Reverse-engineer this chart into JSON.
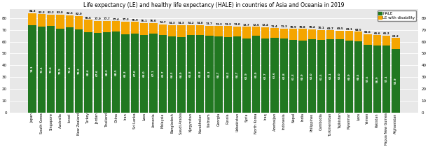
{
  "title": "Life expectancy (LE) and healthy life expectancy (HALE) in countries of Asia and Oceania in 2019",
  "country_labels": [
    "Japan",
    "South Korea",
    "Singapore",
    "Australia",
    "Israel",
    "New Zealand",
    "Turkey",
    "Jordan",
    "Thailand",
    "China",
    "Iran",
    "Sri Lanka",
    "Laos",
    "Armenia",
    "Malaysia",
    "Bangladesh",
    "Saudi Arabia",
    "Kyrgyzstan",
    "Kazakhstan",
    "Vietnam",
    "Georgia",
    "Russia",
    "Uzbekistan",
    "Syria",
    "North Korea",
    "Iraq",
    "Azerbaijan",
    "Indonesia",
    "Nepal",
    "India",
    "Philippines",
    "Cambodia",
    "Turkmenistan",
    "Tajikistan",
    "Myanmar",
    "Laos",
    "Yemen",
    "Pakistan",
    "Papua New Guinea",
    "Afghanistan"
  ],
  "le": [
    84.3,
    83.3,
    83.2,
    83.0,
    82.6,
    82.0,
    78.6,
    77.9,
    77.7,
    77.4,
    77.3,
    76.9,
    76.1,
    76.0,
    74.7,
    74.3,
    74.3,
    74.2,
    74.0,
    73.7,
    73.3,
    73.2,
    73.0,
    72.7,
    72.6,
    72.4,
    71.4,
    71.3,
    70.9,
    70.8,
    70.4,
    70.1,
    69.7,
    69.5,
    69.1,
    68.5,
    66.6,
    65.6,
    65.2,
    63.2
  ],
  "hale": [
    74.1,
    73.1,
    73.6,
    70.9,
    72.4,
    70.2,
    68.4,
    67.6,
    68.3,
    68.5,
    66.3,
    67.0,
    66.0,
    67.1,
    65.7,
    64.3,
    64.0,
    65.8,
    65.8,
    65.3,
    64.7,
    64.2,
    64.7,
    62.9,
    65.0,
    62.7,
    63.6,
    62.8,
    61.3,
    60.9,
    62.0,
    61.5,
    62.1,
    62.0,
    60.9,
    60.5,
    57.5,
    56.9,
    57.1,
    53.9
  ],
  "hale_color": "#217821",
  "disability_color": "#f5a500",
  "bar_width": 0.85,
  "ylim": [
    0,
    88
  ],
  "yticks": [
    0,
    10,
    20,
    30,
    40,
    50,
    60,
    70,
    80
  ],
  "legend_hale": "HALE",
  "legend_disability": "LE with disability",
  "title_fontsize": 5.5,
  "tick_fontsize": 4.0,
  "label_fontsize": 3.5,
  "value_fontsize": 2.8,
  "bg_color": "#e8e8e8"
}
